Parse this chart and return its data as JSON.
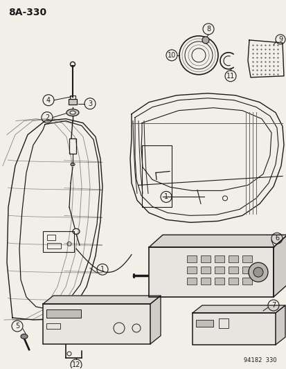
{
  "title": "8A-330",
  "footer": "94182  330",
  "bg_color": "#f2efe9",
  "line_color": "#1a1a1a",
  "fig_width": 4.14,
  "fig_height": 5.33,
  "dpi": 100
}
